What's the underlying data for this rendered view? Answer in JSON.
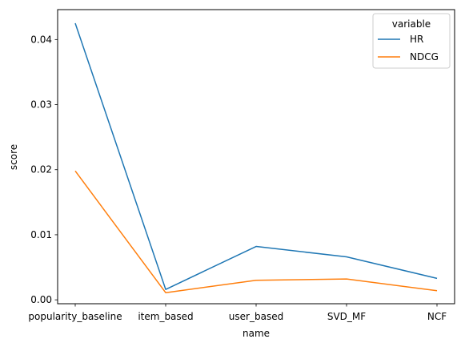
{
  "chart_data": {
    "type": "line",
    "categories": [
      "popularity_baseline",
      "item_based",
      "user_based",
      "SVD_MF",
      "NCF"
    ],
    "series": [
      {
        "name": "HR",
        "values": [
          0.0425,
          0.0016,
          0.0082,
          0.0066,
          0.0033
        ],
        "color": "#1f77b4"
      },
      {
        "name": "NDCG",
        "values": [
          0.0198,
          0.0011,
          0.003,
          0.0032,
          0.0014
        ],
        "color": "#ff7f0e"
      }
    ],
    "xlabel": "name",
    "ylabel": "score",
    "ylim": [
      -0.0006,
      0.0446
    ],
    "yticks": [
      0.0,
      0.01,
      0.02,
      0.03,
      0.04
    ],
    "ytick_labels": [
      "0.00",
      "0.01",
      "0.02",
      "0.03",
      "0.04"
    ],
    "legend": {
      "title": "variable",
      "placement": "top-right"
    },
    "grid": false
  }
}
